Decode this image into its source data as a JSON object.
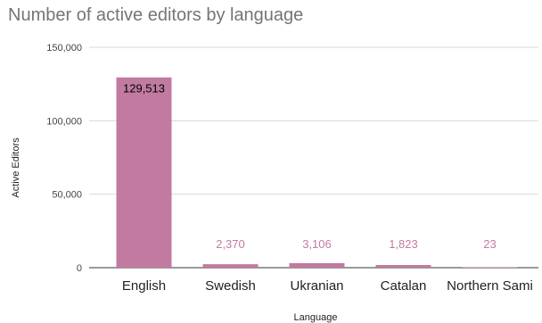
{
  "chart_data": {
    "type": "bar",
    "title": "Number of active editors by language",
    "xlabel": "Language",
    "ylabel": "Active Editors",
    "categories": [
      "English",
      "Swedish",
      "Ukranian",
      "Catalan",
      "Northern Sami"
    ],
    "values": [
      129513,
      2370,
      3106,
      1823,
      23
    ],
    "data_labels": [
      "129,513",
      "2,370",
      "3,106",
      "1,823",
      "23"
    ],
    "ylim": [
      0,
      150000
    ],
    "yticks": [
      0,
      50000,
      100000,
      150000
    ],
    "ytick_labels": [
      "0",
      "50,000",
      "100,000",
      "150,000"
    ],
    "grid": true,
    "legend": "none",
    "colors": {
      "bar": "#c27ba0",
      "label_inside": "#000000",
      "label_outside": "#c27ba0",
      "grid": "#d9d9d9",
      "title": "#757575"
    }
  }
}
